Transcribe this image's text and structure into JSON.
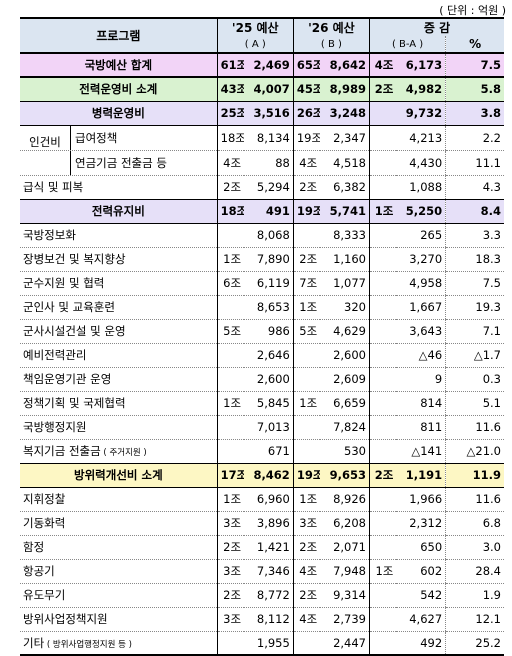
{
  "unit": "( 단위 : 억원 )",
  "headers": {
    "program": "프로그램",
    "budget25": "'25 예산",
    "budget25_sub": "( A )",
    "budget26": "'26 예산",
    "budget26_sub": "( B )",
    "change": "증  감",
    "change_sub": "( B-A )",
    "pct": "%"
  },
  "rows": [
    {
      "label": "국방예산 합계",
      "a_jo": "61조",
      "a": "2,469",
      "b_jo": "65조",
      "b": "8,642",
      "c_jo": "4조",
      "c": "6,173",
      "pct": "7.5"
    },
    {
      "label": "전력운영비 소계",
      "a_jo": "43조",
      "a": "4,007",
      "b_jo": "45조",
      "b": "8,989",
      "c_jo": "2조",
      "c": "4,982",
      "pct": "5.8"
    },
    {
      "label": "병력운영비",
      "a_jo": "25조",
      "a": "3,516",
      "b_jo": "26조",
      "b": "3,248",
      "c_jo": "",
      "c": "9,732",
      "pct": "3.8"
    },
    {
      "group": "인건비",
      "label": "급여정책",
      "a_jo": "18조",
      "a": "8,134",
      "b_jo": "19조",
      "b": "2,347",
      "c_jo": "",
      "c": "4,213",
      "pct": "2.2"
    },
    {
      "label": "연금기금 전출금 등",
      "a_jo": "4조",
      "a": "88",
      "b_jo": "4조",
      "b": "4,518",
      "c_jo": "",
      "c": "4,430",
      "pct": "11.1"
    },
    {
      "label": "급식 및 피복",
      "a_jo": "2조",
      "a": "5,294",
      "b_jo": "2조",
      "b": "6,382",
      "c_jo": "",
      "c": "1,088",
      "pct": "4.3"
    },
    {
      "label": "전력유지비",
      "a_jo": "18조",
      "a": "491",
      "b_jo": "19조",
      "b": "5,741",
      "c_jo": "1조",
      "c": "5,250",
      "pct": "8.4"
    },
    {
      "label": "국방정보화",
      "a_jo": "",
      "a": "8,068",
      "b_jo": "",
      "b": "8,333",
      "c_jo": "",
      "c": "265",
      "pct": "3.3"
    },
    {
      "label": "장병보건 및 복지향상",
      "a_jo": "1조",
      "a": "7,890",
      "b_jo": "2조",
      "b": "1,160",
      "c_jo": "",
      "c": "3,270",
      "pct": "18.3"
    },
    {
      "label": "군수지원 및 협력",
      "a_jo": "6조",
      "a": "6,119",
      "b_jo": "7조",
      "b": "1,077",
      "c_jo": "",
      "c": "4,958",
      "pct": "7.5"
    },
    {
      "label": "군인사 및 교육훈련",
      "a_jo": "",
      "a": "8,653",
      "b_jo": "1조",
      "b": "320",
      "c_jo": "",
      "c": "1,667",
      "pct": "19.3"
    },
    {
      "label": "군사시설건설 및 운영",
      "a_jo": "5조",
      "a": "986",
      "b_jo": "5조",
      "b": "4,629",
      "c_jo": "",
      "c": "3,643",
      "pct": "7.1"
    },
    {
      "label": "예비전력관리",
      "a_jo": "",
      "a": "2,646",
      "b_jo": "",
      "b": "2,600",
      "c_jo": "",
      "c": "△46",
      "pct": "△1.7"
    },
    {
      "label": "책임운영기관 운영",
      "a_jo": "",
      "a": "2,600",
      "b_jo": "",
      "b": "2,609",
      "c_jo": "",
      "c": "9",
      "pct": "0.3"
    },
    {
      "label": "정책기획 및 국제협력",
      "a_jo": "1조",
      "a": "5,845",
      "b_jo": "1조",
      "b": "6,659",
      "c_jo": "",
      "c": "814",
      "pct": "5.1"
    },
    {
      "label": "국방행정지원",
      "a_jo": "",
      "a": "7,013",
      "b_jo": "",
      "b": "7,824",
      "c_jo": "",
      "c": "811",
      "pct": "11.6"
    },
    {
      "label": "복지기금 전출금",
      "label_small": "( 주거지원 )",
      "a_jo": "",
      "a": "671",
      "b_jo": "",
      "b": "530",
      "c_jo": "",
      "c": "△141",
      "pct": "△21.0"
    },
    {
      "label": "방위력개선비 소계",
      "a_jo": "17조",
      "a": "8,462",
      "b_jo": "19조",
      "b": "9,653",
      "c_jo": "2조",
      "c": "1,191",
      "pct": "11.9"
    },
    {
      "label": "지휘정찰",
      "a_jo": "1조",
      "a": "6,960",
      "b_jo": "1조",
      "b": "8,926",
      "c_jo": "",
      "c": "1,966",
      "pct": "11.6"
    },
    {
      "label": "기동화력",
      "a_jo": "3조",
      "a": "3,896",
      "b_jo": "3조",
      "b": "6,208",
      "c_jo": "",
      "c": "2,312",
      "pct": "6.8"
    },
    {
      "label": "함정",
      "a_jo": "2조",
      "a": "1,421",
      "b_jo": "2조",
      "b": "2,071",
      "c_jo": "",
      "c": "650",
      "pct": "3.0"
    },
    {
      "label": "항공기",
      "a_jo": "3조",
      "a": "7,346",
      "b_jo": "4조",
      "b": "7,948",
      "c_jo": "1조",
      "c": "602",
      "pct": "28.4"
    },
    {
      "label": "유도무기",
      "a_jo": "2조",
      "a": "8,772",
      "b_jo": "2조",
      "b": "9,314",
      "c_jo": "",
      "c": "542",
      "pct": "1.9"
    },
    {
      "label": "방위사업정책지원",
      "a_jo": "3조",
      "a": "8,112",
      "b_jo": "4조",
      "b": "2,739",
      "c_jo": "",
      "c": "4,627",
      "pct": "12.1"
    },
    {
      "label": "기타",
      "label_small": "( 방위사업행정지원 등 )",
      "a_jo": "",
      "a": "1,955",
      "b_jo": "",
      "b": "2,447",
      "c_jo": "",
      "c": "492",
      "pct": "25.2"
    }
  ]
}
